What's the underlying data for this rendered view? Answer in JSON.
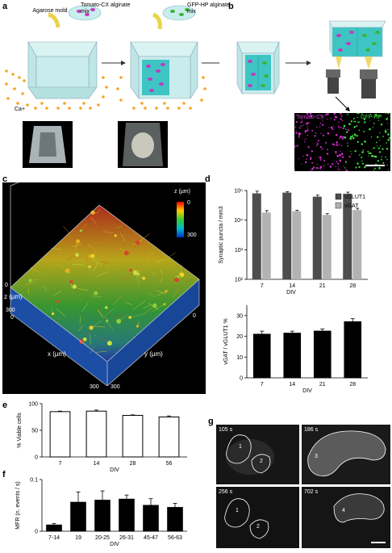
{
  "panels": {
    "a": "a",
    "b": "b",
    "c": "c",
    "d": "d",
    "e": "e",
    "f": "f",
    "g": "g"
  },
  "panel_a": {
    "agarose_mold": "Agarose mold",
    "tomato_mix": "Tomato-CX alginate mix",
    "gfp_mix": "GFP-HP alginate mix",
    "ca_label": "Ca+"
  },
  "panel_b": {
    "tomato_label": "Tomato-CX",
    "gfp_label": "GFP-HP"
  },
  "panel_c": {
    "colorbar_title": "z (µm)",
    "colorbar_top": "0",
    "colorbar_bottom": "300",
    "z_axis_label": "z (µm)",
    "x_axis_label": "x (µm)",
    "y_axis_label": "y (µm)",
    "tick_0_left": "0",
    "tick_300_left": "300",
    "tick_0_mid": "0",
    "tick_0_right": "0",
    "tick_300_bl": "300",
    "tick_300_br": "300"
  },
  "panel_g": {
    "t1": "105 s",
    "t2": "186 s",
    "t3": "256 s",
    "t4": "702 s",
    "r1": "1",
    "r2": "2",
    "r3": "3",
    "r4": "4",
    "r5": "1",
    "r6": "2"
  },
  "colors": {
    "bar_dark": "#4d4d4d",
    "bar_light": "#b3b3b3",
    "tomato": "#d02cc8",
    "gfp": "#3ddc3d",
    "gel": "#9edfe0"
  },
  "chart_data": [
    {
      "id": "d_top",
      "type": "bar",
      "categories": [
        "7",
        "14",
        "21",
        "28"
      ],
      "series": [
        {
          "name": "vGLUT1",
          "values": [
            80000,
            85000,
            62000,
            78000
          ],
          "errors": [
            15000,
            6000,
            8000,
            10000
          ]
        },
        {
          "name": "vGAT",
          "values": [
            18000,
            20000,
            15000,
            22000
          ],
          "errors": [
            3000,
            1500,
            1500,
            3000
          ]
        }
      ],
      "ylabel": "Synaptic puncta / mm3",
      "xlabel": "DIV",
      "yscale": "log",
      "ylim": [
        100,
        100000
      ],
      "yticks": [
        "10²",
        "10³",
        "10⁴",
        "10⁵"
      ],
      "legend": "top-right"
    },
    {
      "id": "d_bottom",
      "type": "bar",
      "categories": [
        "7",
        "14",
        "21",
        "28"
      ],
      "values": [
        21,
        21.5,
        22.5,
        27
      ],
      "errors": [
        1.5,
        1,
        1,
        1.5
      ],
      "ylabel": "vGAT / vGLUT1 %",
      "xlabel": "DIV",
      "ylim": [
        0,
        35
      ],
      "yticks": [
        "0",
        "10",
        "20",
        "30"
      ]
    },
    {
      "id": "e",
      "type": "bar",
      "categories": [
        "7",
        "14",
        "28",
        "56"
      ],
      "values": [
        85,
        86,
        78,
        75
      ],
      "errors": [
        1,
        2,
        1,
        2
      ],
      "ylabel": "% Viable cells",
      "xlabel": "DIV",
      "ylim": [
        0,
        100
      ],
      "yticks": [
        "0",
        "50",
        "100"
      ]
    },
    {
      "id": "f",
      "type": "bar",
      "categories": [
        "7-14",
        "19",
        "20-25",
        "26-31",
        "45-47",
        "56-63"
      ],
      "values": [
        0.012,
        0.056,
        0.06,
        0.062,
        0.05,
        0.046
      ],
      "errors": [
        0.003,
        0.02,
        0.018,
        0.008,
        0.013,
        0.008
      ],
      "ylabel": "MFR (n. events / s)",
      "xlabel": "DIV",
      "ylim": [
        0,
        0.1
      ],
      "yticks": [
        "0",
        "0.1"
      ]
    }
  ]
}
